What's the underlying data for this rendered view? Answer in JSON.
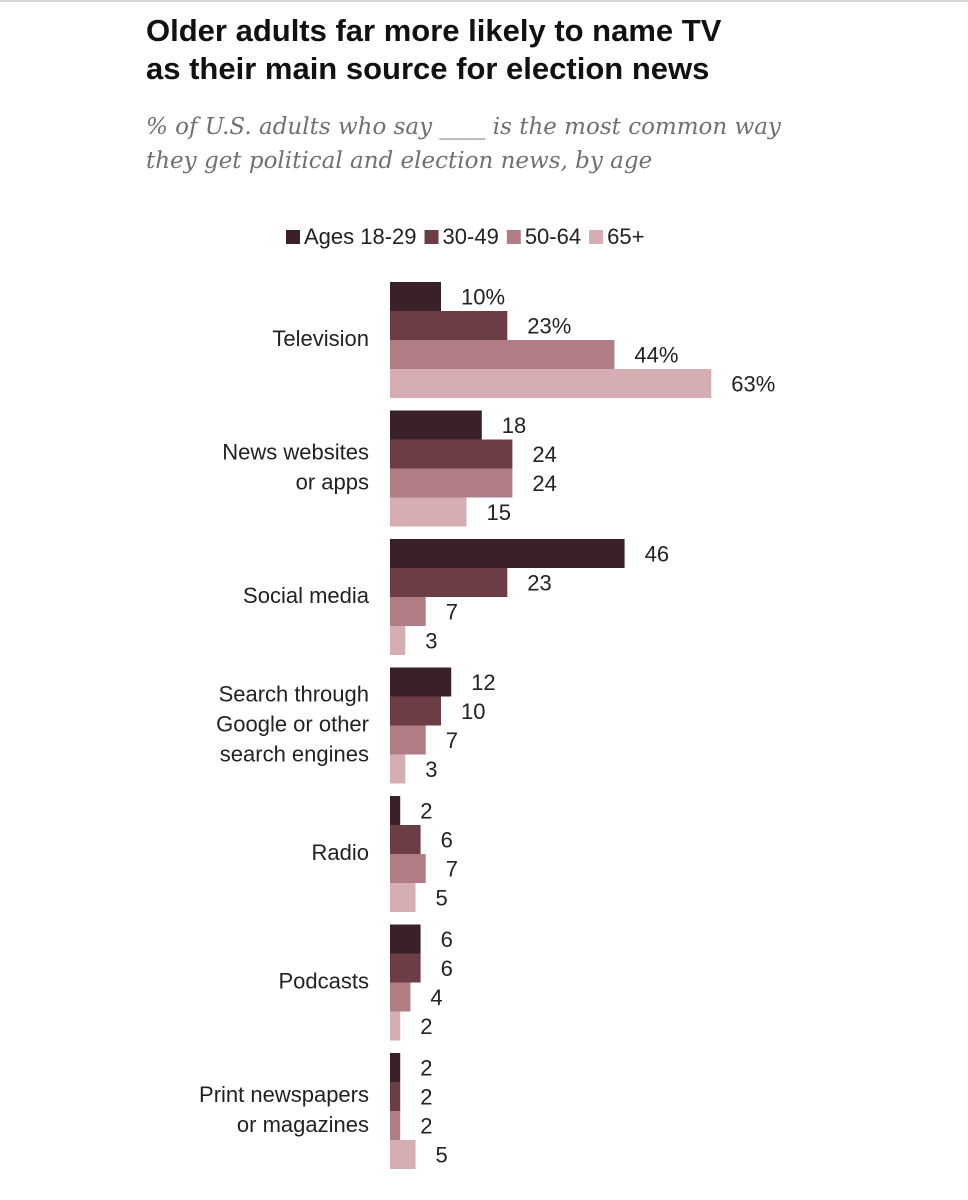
{
  "header": {
    "title_lines": [
      "Older adults far more likely to name TV",
      "as their main source for election news"
    ],
    "subtitle_lines": [
      "% of U.S. adults who say ____ is the most common way",
      "they get political and election news, by age"
    ]
  },
  "chart_data": {
    "type": "bar",
    "orientation": "horizontal",
    "title": "Older adults far more likely to name TV as their main source for election news",
    "subtitle": "% of U.S. adults who say ____ is the most common way they get political and election news, by age",
    "legend_position": "top",
    "categories": [
      [
        "Television"
      ],
      [
        "News websites",
        "or apps"
      ],
      [
        "Social media"
      ],
      [
        "Search through",
        "Google or other",
        "search engines"
      ],
      [
        "Radio"
      ],
      [
        "Podcasts"
      ],
      [
        "Print newspapers",
        "or magazines"
      ]
    ],
    "series": [
      {
        "name": "Ages 18-29",
        "color": "#3a2127",
        "values": [
          10,
          18,
          46,
          12,
          2,
          6,
          2
        ]
      },
      {
        "name": "30-49",
        "color": "#6d3d45",
        "values": [
          23,
          24,
          23,
          10,
          6,
          6,
          2
        ]
      },
      {
        "name": "50-64",
        "color": "#b07d84",
        "values": [
          44,
          24,
          7,
          7,
          7,
          4,
          2
        ]
      },
      {
        "name": "65+",
        "color": "#d6adb3",
        "values": [
          63,
          15,
          3,
          3,
          5,
          2,
          5
        ]
      }
    ],
    "value_labels": [
      [
        "10%",
        "23%",
        "44%",
        "63%"
      ],
      [
        "18",
        "24",
        "24",
        "15"
      ],
      [
        "46",
        "23",
        "7",
        "3"
      ],
      [
        "12",
        "10",
        "7",
        "3"
      ],
      [
        "2",
        "6",
        "7",
        "5"
      ],
      [
        "6",
        "6",
        "4",
        "2"
      ],
      [
        "2",
        "2",
        "2",
        "5"
      ]
    ],
    "xlim": [
      0,
      63
    ],
    "xlabel": "",
    "ylabel": "",
    "grid": false
  }
}
